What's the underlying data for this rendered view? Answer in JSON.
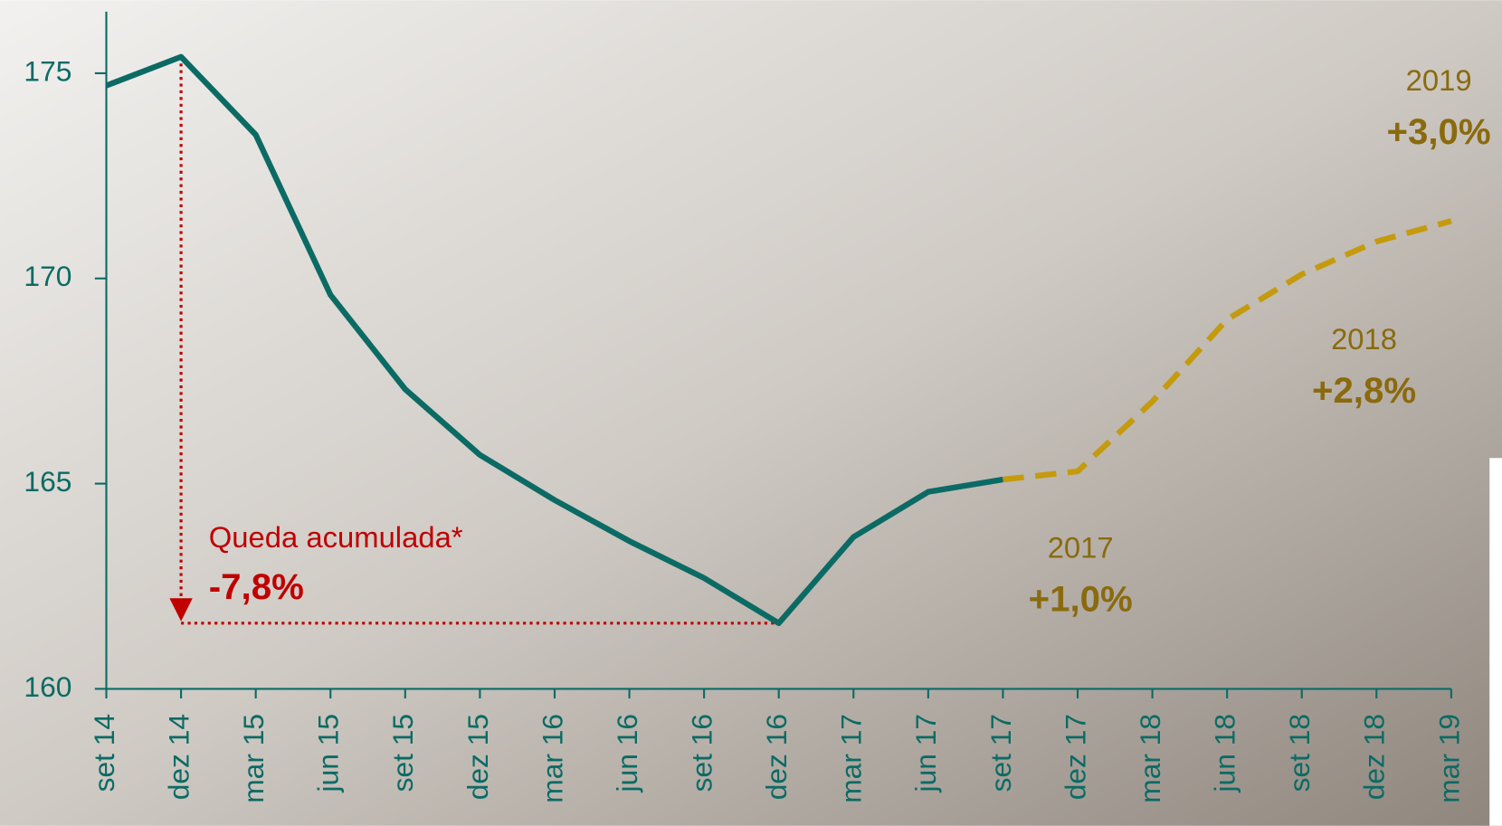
{
  "chart_data": {
    "type": "line",
    "categories": [
      "set 14",
      "dez 14",
      "mar 15",
      "jun 15",
      "set 15",
      "dez 15",
      "mar 16",
      "jun 16",
      "set 16",
      "dez 16",
      "mar 17",
      "jun 17",
      "set 17",
      "dez 17",
      "mar 18",
      "jun 18",
      "set 18",
      "dez 18",
      "mar 19"
    ],
    "series": [
      {
        "color": "#0b6b64",
        "dashed": false,
        "values": [
          174.7,
          175.4,
          173.5,
          169.6,
          167.3,
          165.7,
          164.6,
          163.6,
          162.7,
          161.6,
          163.7,
          164.8,
          165.1,
          null,
          null,
          null,
          null,
          null,
          null
        ]
      },
      {
        "color": "#c59a0c",
        "dashed": true,
        "values": [
          null,
          null,
          null,
          null,
          null,
          null,
          null,
          null,
          null,
          null,
          null,
          null,
          165.1,
          165.3,
          167.0,
          169.0,
          170.1,
          170.9,
          171.4
        ]
      }
    ],
    "ylim": [
      160,
      176.5
    ],
    "yticks": [
      160,
      165,
      170,
      175
    ],
    "annotations": [
      {
        "text": "Queda acumulada*",
        "color": "#c00000",
        "bold": false
      },
      {
        "text": "-7,8%",
        "color": "#c00000",
        "bold": true
      },
      {
        "text": "2017",
        "color": "#8a6a0e",
        "bold": false
      },
      {
        "text": "+1,0%",
        "color": "#8a6a0e",
        "bold": true
      },
      {
        "text": "2018",
        "color": "#8a6a0e",
        "bold": false
      },
      {
        "text": "+2,8%",
        "color": "#8a6a0e",
        "bold": true
      },
      {
        "text": "2019",
        "color": "#8a6a0e",
        "bold": false
      },
      {
        "text": "+3,0%",
        "color": "#8a6a0e",
        "bold": true
      }
    ]
  }
}
